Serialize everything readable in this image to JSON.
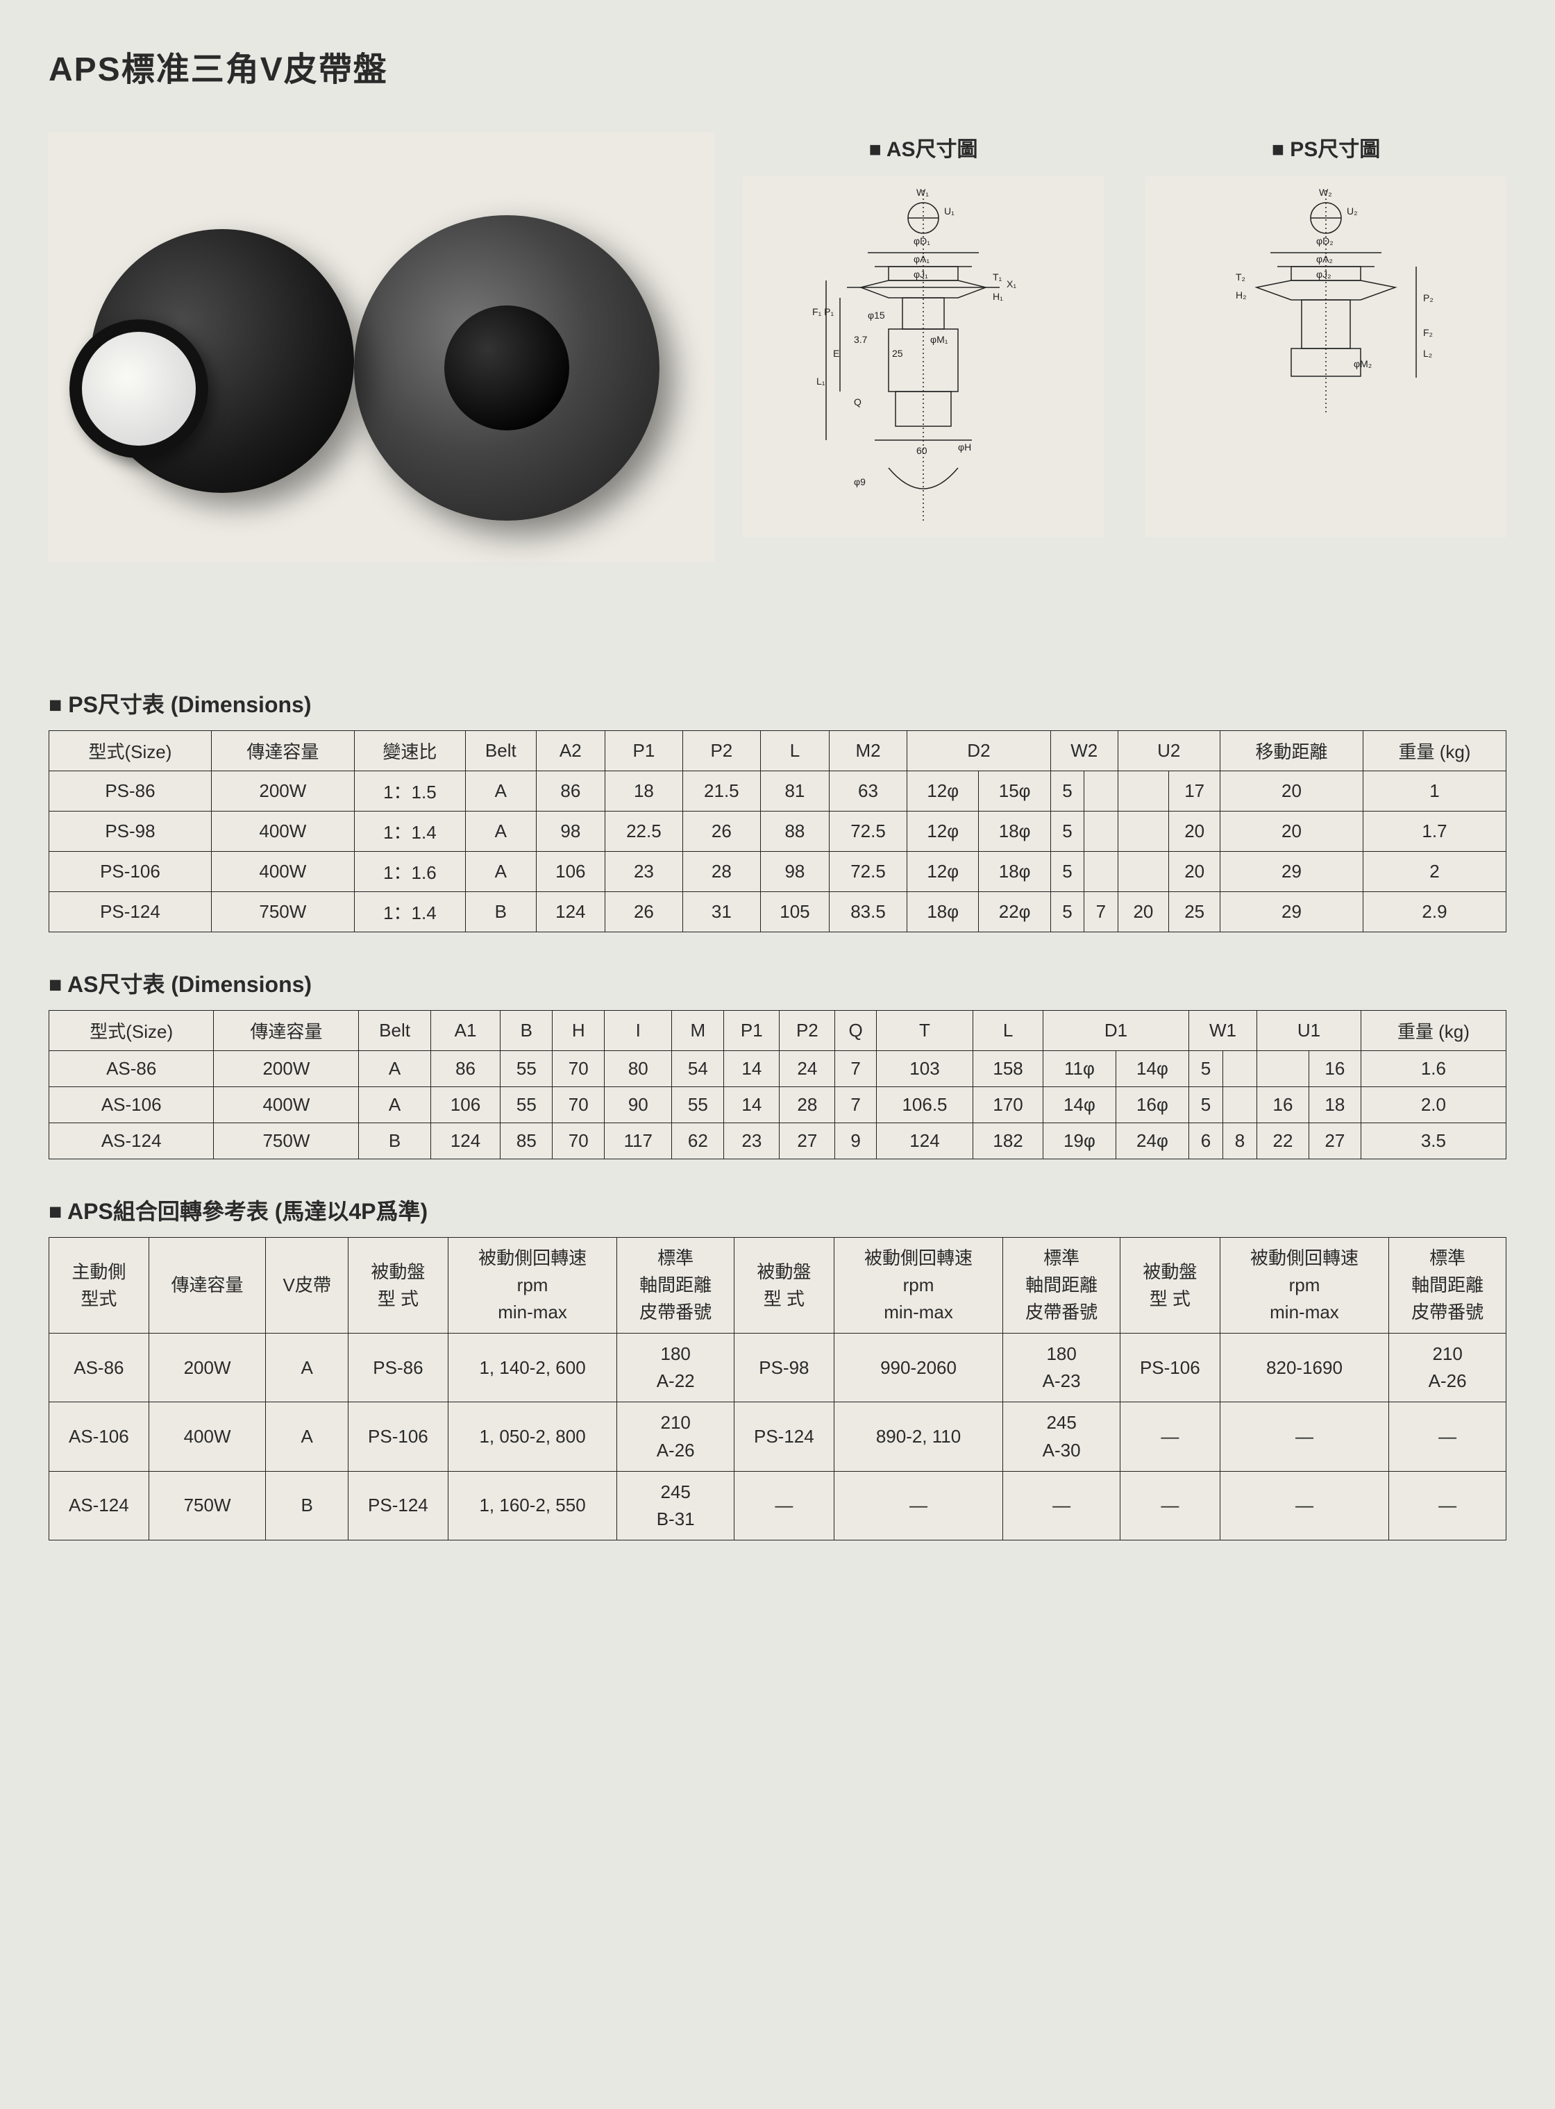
{
  "title": "APS標准三角V皮帶盤",
  "diagram_labels": {
    "as": "AS尺寸圖",
    "ps": "PS尺寸圖"
  },
  "diagram_text": {
    "as": [
      "W₁",
      "U₁",
      "φD₁",
      "φA₁",
      "φJ₁",
      "T₁",
      "H₁",
      "φ15",
      "F₁ P₁",
      "X₁",
      "φM₁",
      "3.7",
      "L₁",
      "E",
      "Q",
      "25",
      "60",
      "φH",
      "φ9"
    ],
    "ps": [
      "W₂",
      "U₂",
      "φD₂",
      "φA₂",
      "φJ₂",
      "T₂",
      "H₂",
      "P₂",
      "F₂",
      "L₂",
      "φM₂"
    ]
  },
  "ps_table": {
    "title": "PS尺寸表  (Dimensions)",
    "headers": [
      "型式(Size)",
      "傳達容量",
      "變速比",
      "Belt",
      "A2",
      "P1",
      "P2",
      "L",
      "M2",
      "D2",
      "W2",
      "U2",
      "移動距離",
      "重量  (kg)"
    ],
    "rows": [
      {
        "size": "PS-86",
        "cap": "200W",
        "ratio": "1：1.5",
        "belt": "A",
        "a2": "86",
        "p1": "18",
        "p2": "21.5",
        "l": "81",
        "m2": "63",
        "d2a": "12φ",
        "d2b": "15φ",
        "w2a": "5",
        "w2b": "",
        "u2a": "",
        "u2b": "17",
        "move": "20",
        "wt": "1"
      },
      {
        "size": "PS-98",
        "cap": "400W",
        "ratio": "1：1.4",
        "belt": "A",
        "a2": "98",
        "p1": "22.5",
        "p2": "26",
        "l": "88",
        "m2": "72.5",
        "d2a": "12φ",
        "d2b": "18φ",
        "w2a": "5",
        "w2b": "",
        "u2a": "",
        "u2b": "20",
        "move": "20",
        "wt": "1.7"
      },
      {
        "size": "PS-106",
        "cap": "400W",
        "ratio": "1：1.6",
        "belt": "A",
        "a2": "106",
        "p1": "23",
        "p2": "28",
        "l": "98",
        "m2": "72.5",
        "d2a": "12φ",
        "d2b": "18φ",
        "w2a": "5",
        "w2b": "",
        "u2a": "",
        "u2b": "20",
        "move": "29",
        "wt": "2"
      },
      {
        "size": "PS-124",
        "cap": "750W",
        "ratio": "1：1.4",
        "belt": "B",
        "a2": "124",
        "p1": "26",
        "p2": "31",
        "l": "105",
        "m2": "83.5",
        "d2a": "18φ",
        "d2b": "22φ",
        "w2a": "5",
        "w2b": "7",
        "u2a": "20",
        "u2b": "25",
        "move": "29",
        "wt": "2.9"
      }
    ]
  },
  "as_table": {
    "title": "AS尺寸表  (Dimensions)",
    "headers": [
      "型式(Size)",
      "傳達容量",
      "Belt",
      "A1",
      "B",
      "H",
      "I",
      "M",
      "P1",
      "P2",
      "Q",
      "T",
      "L",
      "D1",
      "W1",
      "U1",
      "重量  (kg)"
    ],
    "rows": [
      {
        "size": "AS-86",
        "cap": "200W",
        "belt": "A",
        "a1": "86",
        "b": "55",
        "h": "70",
        "i": "80",
        "m": "54",
        "p1": "14",
        "p2": "24",
        "q": "7",
        "t": "103",
        "l": "158",
        "d1a": "11φ",
        "d1b": "14φ",
        "w1a": "5",
        "w1b": "",
        "u1a": "",
        "u1b": "16",
        "wt": "1.6"
      },
      {
        "size": "AS-106",
        "cap": "400W",
        "belt": "A",
        "a1": "106",
        "b": "55",
        "h": "70",
        "i": "90",
        "m": "55",
        "p1": "14",
        "p2": "28",
        "q": "7",
        "t": "106.5",
        "l": "170",
        "d1a": "14φ",
        "d1b": "16φ",
        "w1a": "5",
        "w1b": "",
        "u1a": "16",
        "u1b": "18",
        "wt": "2.0"
      },
      {
        "size": "AS-124",
        "cap": "750W",
        "belt": "B",
        "a1": "124",
        "b": "85",
        "h": "70",
        "i": "117",
        "m": "62",
        "p1": "23",
        "p2": "27",
        "q": "9",
        "t": "124",
        "l": "182",
        "d1a": "19φ",
        "d1b": "24φ",
        "w1a": "6",
        "w1b": "8",
        "u1a": "22",
        "u1b": "27",
        "wt": "3.5"
      }
    ]
  },
  "combo_table": {
    "title": "APS組合回轉參考表  (馬達以4P爲準)",
    "headers": {
      "c0": "主動側\n型式",
      "c1": "傳達容量",
      "c2": "V皮帶",
      "c3": "被動盤\n型  式",
      "c4": "被動側回轉速\nrpm\nmin-max",
      "c5": "標準\n軸間距離\n皮帶番號",
      "c6": "被動盤\n型  式",
      "c7": "被動側回轉速\nrpm\nmin-max",
      "c8": "標準\n軸間距離\n皮帶番號",
      "c9": "被動盤\n型  式",
      "c10": "被動側回轉速\nrpm\nmin-max",
      "c11": "標準\n軸間距離\n皮帶番號"
    },
    "rows": [
      {
        "c0": "AS-86",
        "c1": "200W",
        "c2": "A",
        "c3": "PS-86",
        "c4": "1, 140-2, 600",
        "c5a": "180",
        "c5b": "A-22",
        "c6": "PS-98",
        "c7": "990-2060",
        "c8a": "180",
        "c8b": "A-23",
        "c9": "PS-106",
        "c10": "820-1690",
        "c11a": "210",
        "c11b": "A-26"
      },
      {
        "c0": "AS-106",
        "c1": "400W",
        "c2": "A",
        "c3": "PS-106",
        "c4": "1, 050-2, 800",
        "c5a": "210",
        "c5b": "A-26",
        "c6": "PS-124",
        "c7": "890-2, 110",
        "c8a": "245",
        "c8b": "A-30",
        "c9": "—",
        "c10": "—",
        "c11a": "—",
        "c11b": ""
      },
      {
        "c0": "AS-124",
        "c1": "750W",
        "c2": "B",
        "c3": "PS-124",
        "c4": "1, 160-2, 550",
        "c5a": "245",
        "c5b": "B-31",
        "c6": "—",
        "c7": "—",
        "c8a": "—",
        "c8b": "",
        "c9": "—",
        "c10": "—",
        "c11a": "—",
        "c11b": ""
      }
    ]
  }
}
